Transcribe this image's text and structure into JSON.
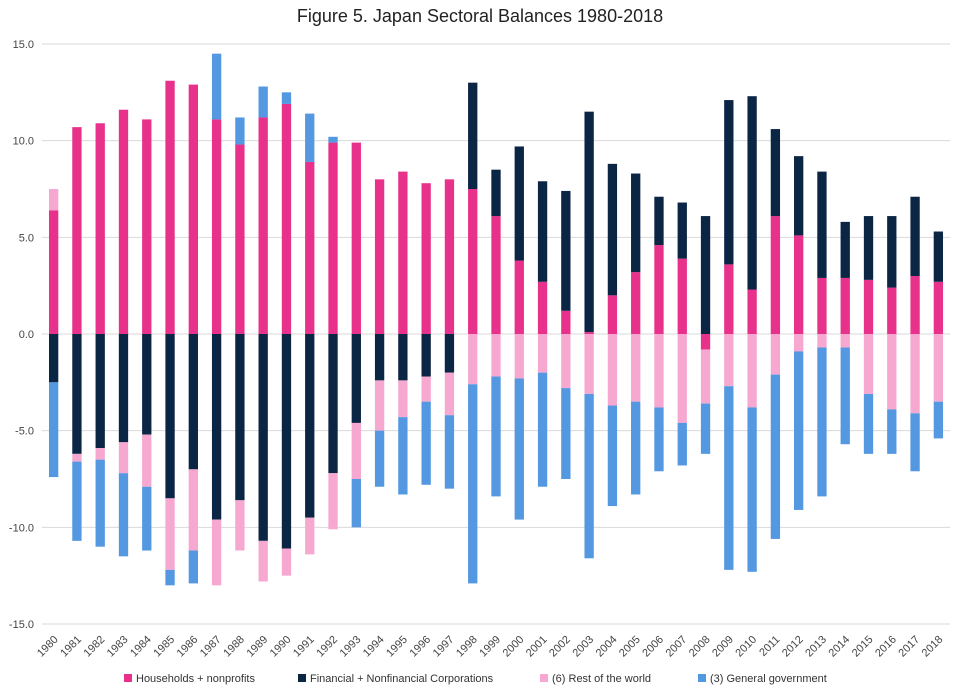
{
  "chart_data": {
    "type": "bar",
    "stacked": true,
    "title": "Figure 5. Japan Sectoral Balances 1980-2018",
    "xlabel": "",
    "ylabel": "",
    "ylim": [
      -15,
      15
    ],
    "yticks": [
      "15.0",
      "10.0",
      "5.0",
      "0.0",
      "-5.0",
      "-10.0",
      "-15.0"
    ],
    "ytick_values": [
      15,
      10,
      5,
      0,
      -5,
      -10,
      -15
    ],
    "grid": true,
    "legend_position": "bottom",
    "categories": [
      "1980",
      "1981",
      "1982",
      "1983",
      "1984",
      "1985",
      "1986",
      "1987",
      "1988",
      "1989",
      "1990",
      "1991",
      "1992",
      "1993",
      "1994",
      "1995",
      "1996",
      "1997",
      "1998",
      "1999",
      "2000",
      "2001",
      "2002",
      "2003",
      "2004",
      "2005",
      "2006",
      "2007",
      "2008",
      "2009",
      "2010",
      "2011",
      "2012",
      "2013",
      "2014",
      "2015",
      "2016",
      "2017",
      "2018"
    ],
    "series": [
      {
        "name": "Households + nonprofits",
        "color": "#E8318A",
        "values": [
          6.4,
          10.7,
          10.9,
          11.6,
          11.1,
          13.1,
          12.9,
          11.1,
          9.8,
          11.2,
          11.9,
          8.9,
          9.9,
          9.9,
          8.0,
          8.4,
          7.8,
          8.0,
          7.5,
          6.1,
          3.8,
          2.7,
          1.2,
          0.1,
          2.0,
          3.2,
          4.6,
          3.9,
          -0.8,
          3.6,
          2.3,
          6.1,
          5.1,
          2.9,
          2.9,
          2.8,
          2.4,
          3.0,
          2.7
        ]
      },
      {
        "name": "Financial + Nonfinancial Corporations",
        "color": "#0B2545",
        "values": [
          -2.5,
          -6.2,
          -5.9,
          -5.6,
          -5.2,
          -8.5,
          -7.0,
          -9.6,
          -8.6,
          -10.7,
          -11.1,
          -9.5,
          -7.2,
          -4.6,
          -2.4,
          -2.4,
          -2.2,
          -2.0,
          5.5,
          2.4,
          5.9,
          5.2,
          6.2,
          11.4,
          6.8,
          5.1,
          2.5,
          2.9,
          6.1,
          8.5,
          10.0,
          4.5,
          4.1,
          5.5,
          2.9,
          3.3,
          3.7,
          4.1,
          2.6
        ]
      },
      {
        "name": "(6) Rest of the world",
        "color": "#F7A8D0",
        "values": [
          1.1,
          -0.4,
          -0.6,
          -1.6,
          -2.7,
          -3.7,
          -4.2,
          -3.4,
          -2.6,
          -2.1,
          -1.4,
          -1.9,
          -2.9,
          -2.9,
          -2.6,
          -1.9,
          -1.3,
          -2.2,
          -2.6,
          -2.2,
          -2.3,
          -2.0,
          -2.8,
          -3.1,
          -3.7,
          -3.5,
          -3.8,
          -4.6,
          -2.8,
          -2.7,
          -3.8,
          -2.1,
          -0.9,
          -0.7,
          -0.7,
          -3.1,
          -3.9,
          -4.1,
          -3.5
        ]
      },
      {
        "name": "(3) General government",
        "color": "#5398E0",
        "values": [
          -4.9,
          -4.1,
          -4.5,
          -4.3,
          -3.3,
          -0.8,
          -1.7,
          3.4,
          1.4,
          1.6,
          0.6,
          2.5,
          0.3,
          -2.5,
          -2.9,
          -4.0,
          -4.3,
          -3.8,
          -10.3,
          -6.2,
          -7.3,
          -5.9,
          -4.7,
          -8.5,
          -5.2,
          -4.8,
          -3.3,
          -2.2,
          -2.6,
          -9.5,
          -8.5,
          -8.5,
          -8.2,
          -7.7,
          -5.0,
          -3.1,
          -2.3,
          -3.0,
          -1.9
        ]
      }
    ]
  }
}
